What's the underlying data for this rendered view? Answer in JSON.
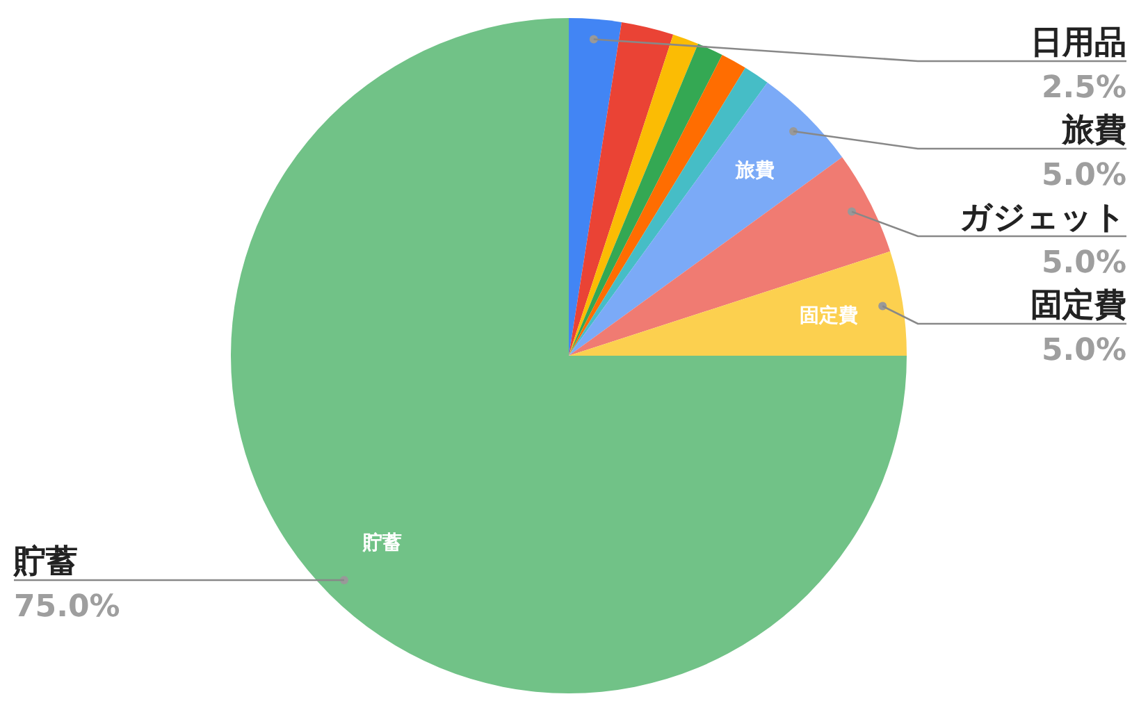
{
  "chart_data": {
    "type": "pie",
    "categories": [
      "日用品",
      null,
      null,
      null,
      null,
      null,
      "旅費",
      "ガジェット",
      "固定費",
      "貯蓄"
    ],
    "values": [
      2.5,
      2.5,
      1.25,
      1.25,
      1.25,
      1.25,
      5,
      5,
      5,
      75
    ],
    "colors": [
      "#4285f4",
      "#ea4335",
      "#fbbc04",
      "#34a853",
      "#ff6d01",
      "#46bdc6",
      "#7baaf7",
      "#f07b72",
      "#fcd04f",
      "#71c287"
    ],
    "value_labels": [
      "2.5%",
      null,
      null,
      null,
      null,
      null,
      "5.0%",
      "5.0%",
      "5.0%",
      "75.0%"
    ]
  }
}
